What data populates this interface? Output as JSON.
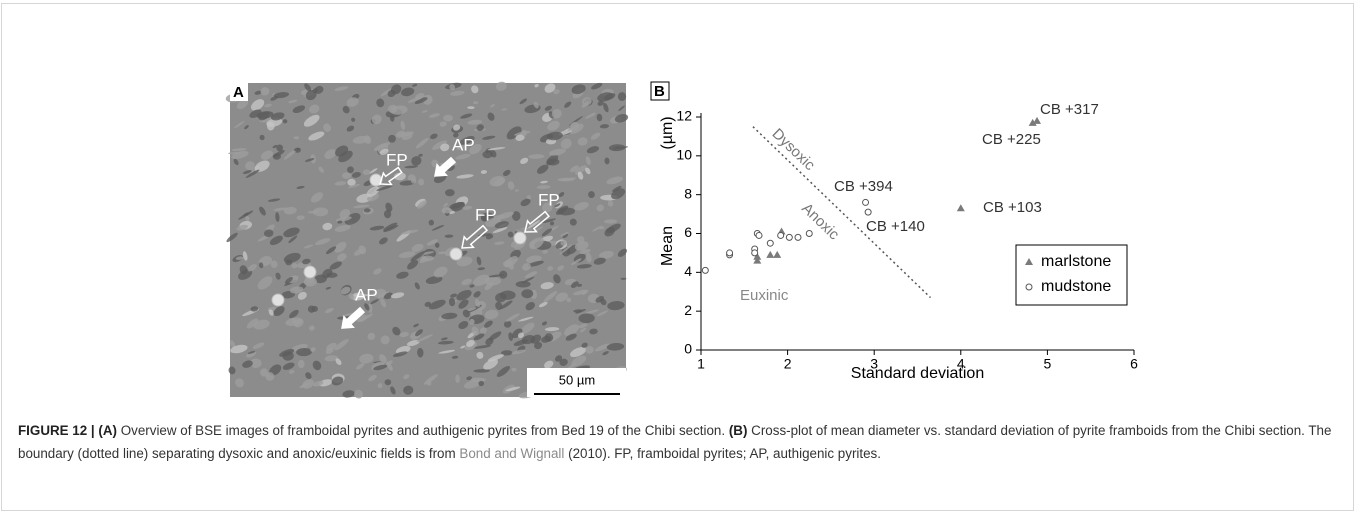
{
  "panel_a": {
    "label": "A",
    "annotations": [
      "FP",
      "AP",
      "FP",
      "FP",
      "AP"
    ],
    "scale_bar": "50 µm"
  },
  "chart_data": {
    "type": "scatter",
    "panel_label": "B",
    "xlabel": "Standard deviation",
    "ylabel": "Mean",
    "ylabel_unit": "(µm)",
    "xlim": [
      1,
      6
    ],
    "xticks": [
      1,
      2,
      3,
      4,
      5,
      6
    ],
    "ylim": [
      0,
      12
    ],
    "yticks": [
      0,
      2,
      4,
      6,
      8,
      10,
      12
    ],
    "series": [
      {
        "name": "marlstone",
        "marker": "triangle",
        "color": "#7a7a7a",
        "x": [
          1.65,
          1.65,
          1.8,
          1.88,
          1.93,
          4.0,
          4.83,
          4.88
        ],
        "values": [
          4.6,
          4.8,
          4.9,
          4.9,
          6.1,
          7.3,
          11.7,
          11.8
        ]
      },
      {
        "name": "mudstone",
        "marker": "circle",
        "color": "#555555",
        "x": [
          1.05,
          1.33,
          1.33,
          1.62,
          1.62,
          1.65,
          1.67,
          1.8,
          1.92,
          2.02,
          2.12,
          2.25,
          2.9,
          2.93
        ],
        "values": [
          4.1,
          4.9,
          5.0,
          5.2,
          5.0,
          6.0,
          5.9,
          5.5,
          5.9,
          5.8,
          5.8,
          6.0,
          7.6,
          7.1
        ]
      }
    ],
    "boundary": {
      "x": [
        1.6,
        3.65
      ],
      "y": [
        11.5,
        2.7
      ]
    },
    "annotations": [
      "CB +317",
      "CB +225",
      "CB +394",
      "CB +140",
      "CB +103",
      "Dysoxic",
      "Anoxic",
      "Euxinic"
    ],
    "legend": "right"
  },
  "caption": [
    "FIGURE 12 |",
    "(A)",
    "Overview of BSE images of framboidal pyrites and authigenic pyrites from Bed 19 of the Chibi section.",
    "(B)",
    "Cross-plot of mean diameter vs. standard deviation of pyrite framboids from the Chibi section. The boundary (dotted line) separating dysoxic and anoxic/euxinic fields is from",
    "Bond and Wignall",
    "(2010). FP, framboidal pyrites; AP, authigenic pyrites."
  ]
}
